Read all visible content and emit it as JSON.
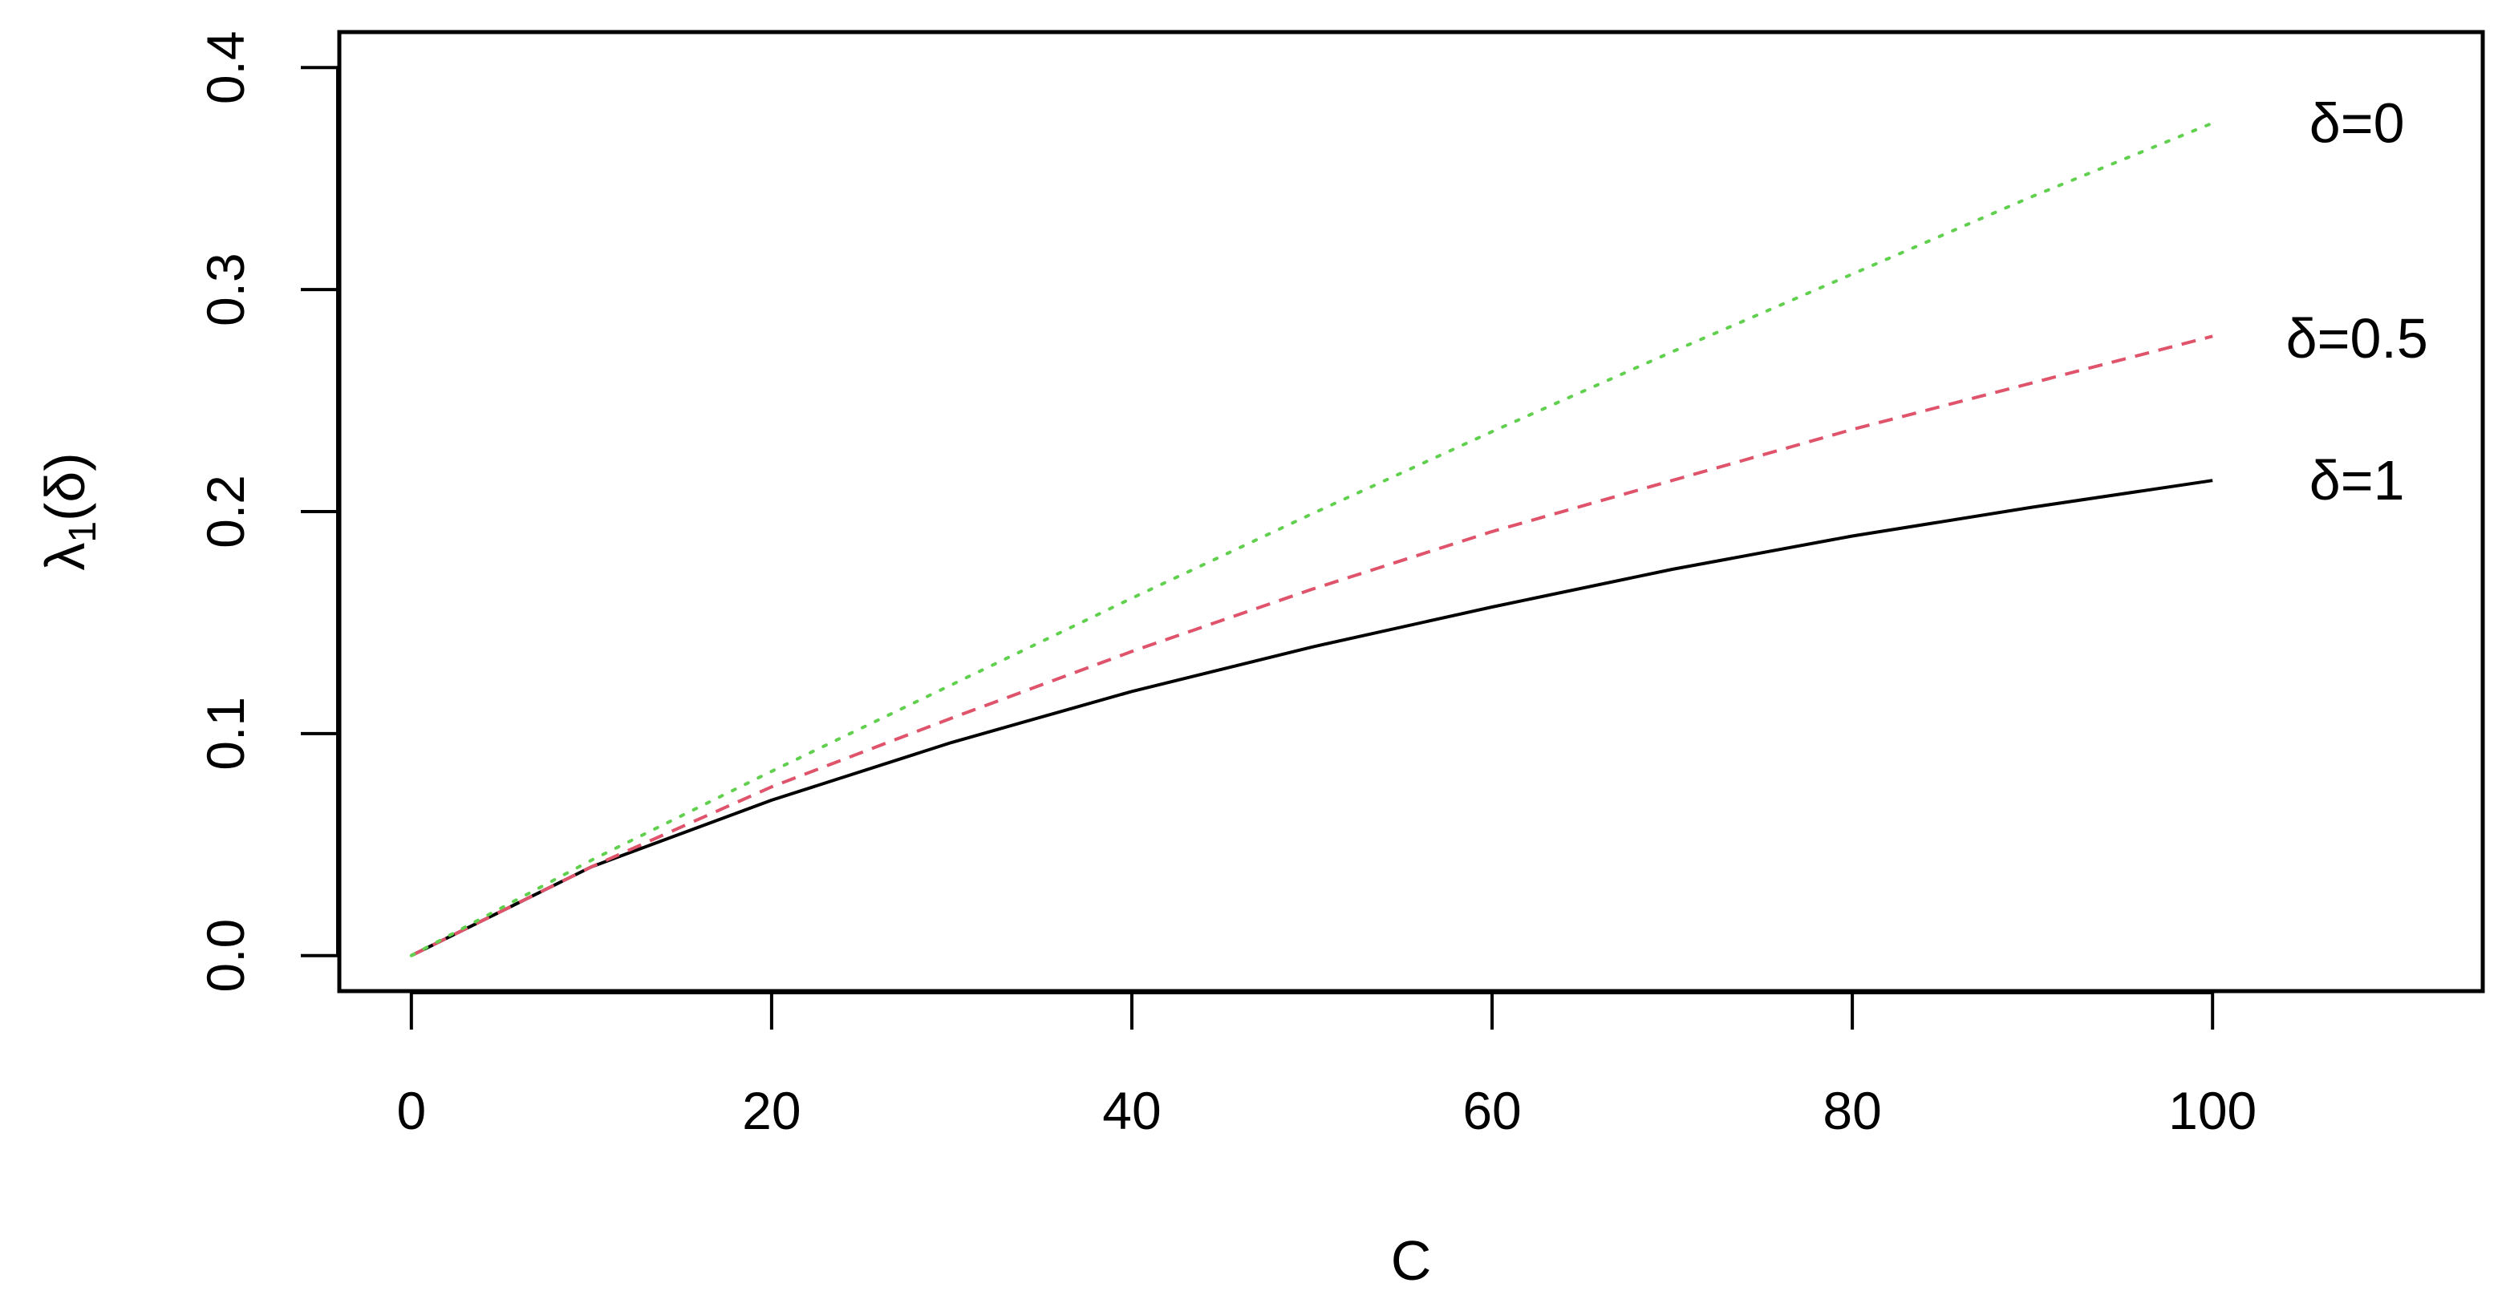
{
  "chart_data": {
    "type": "line",
    "xlabel": "C",
    "ylabel": "λ1(δ)",
    "ylabel_parts": {
      "symbol": "λ",
      "subscript": "1",
      "argument": "(δ)"
    },
    "xlim": [
      -4,
      115
    ],
    "ylim": [
      -0.016,
      0.416
    ],
    "x_ticks": [
      0,
      20,
      40,
      60,
      80,
      100
    ],
    "y_ticks": [
      0.0,
      0.1,
      0.2,
      0.3,
      0.4
    ],
    "x_tick_labels": [
      "0",
      "20",
      "40",
      "60",
      "80",
      "100"
    ],
    "y_tick_labels": [
      "0.0",
      "0.1",
      "0.2",
      "0.3",
      "0.4"
    ],
    "grid": false,
    "x": [
      0,
      10,
      20,
      30,
      40,
      50,
      60,
      70,
      80,
      90,
      100
    ],
    "series": [
      {
        "name": "δ=1",
        "label_y": 0.214,
        "color": "#000000",
        "style": "solid",
        "values": [
          0.0,
          0.04,
          0.07,
          0.096,
          0.119,
          0.139,
          0.157,
          0.174,
          0.189,
          0.202,
          0.214
        ]
      },
      {
        "name": "δ=0.5",
        "label_y": 0.278,
        "color": "#df536b",
        "style": "dashed",
        "values": [
          0.0,
          0.04,
          0.076,
          0.107,
          0.137,
          0.165,
          0.191,
          0.214,
          0.237,
          0.258,
          0.279
        ]
      },
      {
        "name": "δ=0",
        "label_y": 0.375,
        "color": "#61d04f",
        "style": "dotted",
        "values": [
          0.0,
          0.043,
          0.083,
          0.122,
          0.161,
          0.199,
          0.236,
          0.272,
          0.307,
          0.342,
          0.375
        ]
      }
    ]
  }
}
